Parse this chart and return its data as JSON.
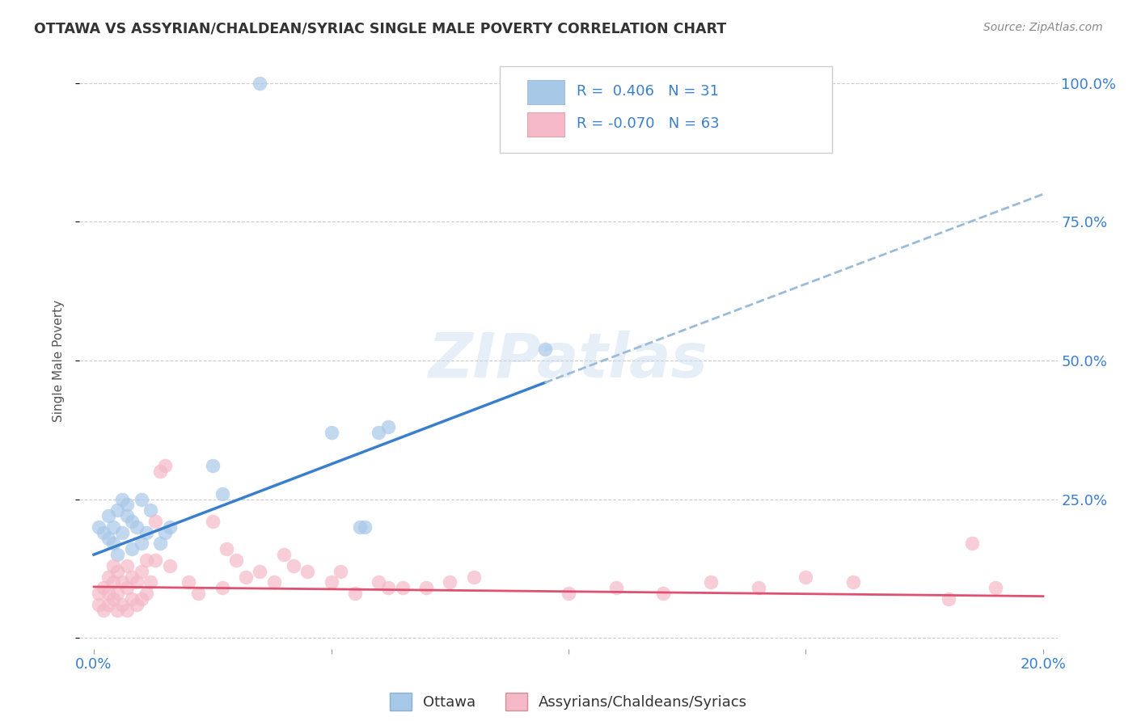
{
  "title": "OTTAWA VS ASSYRIAN/CHALDEAN/SYRIAC SINGLE MALE POVERTY CORRELATION CHART",
  "source": "Source: ZipAtlas.com",
  "ylabel": "Single Male Poverty",
  "r_ottawa": 0.406,
  "n_ottawa": 31,
  "r_assyrian": -0.07,
  "n_assyrian": 63,
  "xlim": [
    0.0,
    0.2
  ],
  "ylim": [
    0.0,
    1.0
  ],
  "color_ottawa": "#a8c8e8",
  "color_assyrian": "#f4b8c8",
  "color_trend_ottawa": "#3a7fcc",
  "color_trend_assyrian": "#e05070",
  "color_dashed": "#9bbbd8",
  "background": "#ffffff",
  "legend_color": "#3a7fcc",
  "trend_ottawa_x0": 0.0,
  "trend_ottawa_y0": 0.15,
  "trend_ottawa_x1": 0.095,
  "trend_ottawa_y1": 0.46,
  "trend_dash_x0": 0.095,
  "trend_dash_y0": 0.46,
  "trend_dash_x1": 0.2,
  "trend_dash_y1": 0.8,
  "trend_assyrian_x0": 0.0,
  "trend_assyrian_y0": 0.092,
  "trend_assyrian_x1": 0.2,
  "trend_assyrian_y1": 0.075,
  "ottawa_x": [
    0.035,
    0.001,
    0.002,
    0.003,
    0.003,
    0.004,
    0.004,
    0.005,
    0.005,
    0.006,
    0.006,
    0.007,
    0.007,
    0.008,
    0.008,
    0.009,
    0.01,
    0.01,
    0.011,
    0.012,
    0.014,
    0.015,
    0.016,
    0.025,
    0.027,
    0.05,
    0.056,
    0.057,
    0.06,
    0.062,
    0.095
  ],
  "ottawa_y": [
    1.0,
    0.2,
    0.19,
    0.18,
    0.22,
    0.2,
    0.17,
    0.23,
    0.15,
    0.25,
    0.19,
    0.24,
    0.22,
    0.21,
    0.16,
    0.2,
    0.17,
    0.25,
    0.19,
    0.23,
    0.17,
    0.19,
    0.2,
    0.31,
    0.26,
    0.37,
    0.2,
    0.2,
    0.37,
    0.38,
    0.52
  ],
  "assyrian_x": [
    0.001,
    0.001,
    0.002,
    0.002,
    0.003,
    0.003,
    0.003,
    0.004,
    0.004,
    0.004,
    0.005,
    0.005,
    0.005,
    0.006,
    0.006,
    0.007,
    0.007,
    0.007,
    0.008,
    0.008,
    0.009,
    0.009,
    0.01,
    0.01,
    0.011,
    0.011,
    0.012,
    0.013,
    0.013,
    0.014,
    0.015,
    0.016,
    0.02,
    0.022,
    0.025,
    0.027,
    0.028,
    0.03,
    0.032,
    0.035,
    0.038,
    0.04,
    0.042,
    0.045,
    0.05,
    0.052,
    0.055,
    0.06,
    0.062,
    0.065,
    0.07,
    0.075,
    0.08,
    0.1,
    0.11,
    0.12,
    0.13,
    0.14,
    0.15,
    0.16,
    0.18,
    0.185,
    0.19
  ],
  "assyrian_y": [
    0.06,
    0.08,
    0.05,
    0.09,
    0.06,
    0.08,
    0.11,
    0.07,
    0.1,
    0.13,
    0.05,
    0.08,
    0.12,
    0.06,
    0.1,
    0.05,
    0.09,
    0.13,
    0.07,
    0.11,
    0.06,
    0.1,
    0.07,
    0.12,
    0.08,
    0.14,
    0.1,
    0.21,
    0.14,
    0.3,
    0.31,
    0.13,
    0.1,
    0.08,
    0.21,
    0.09,
    0.16,
    0.14,
    0.11,
    0.12,
    0.1,
    0.15,
    0.13,
    0.12,
    0.1,
    0.12,
    0.08,
    0.1,
    0.09,
    0.09,
    0.09,
    0.1,
    0.11,
    0.08,
    0.09,
    0.08,
    0.1,
    0.09,
    0.11,
    0.1,
    0.07,
    0.17,
    0.09
  ]
}
